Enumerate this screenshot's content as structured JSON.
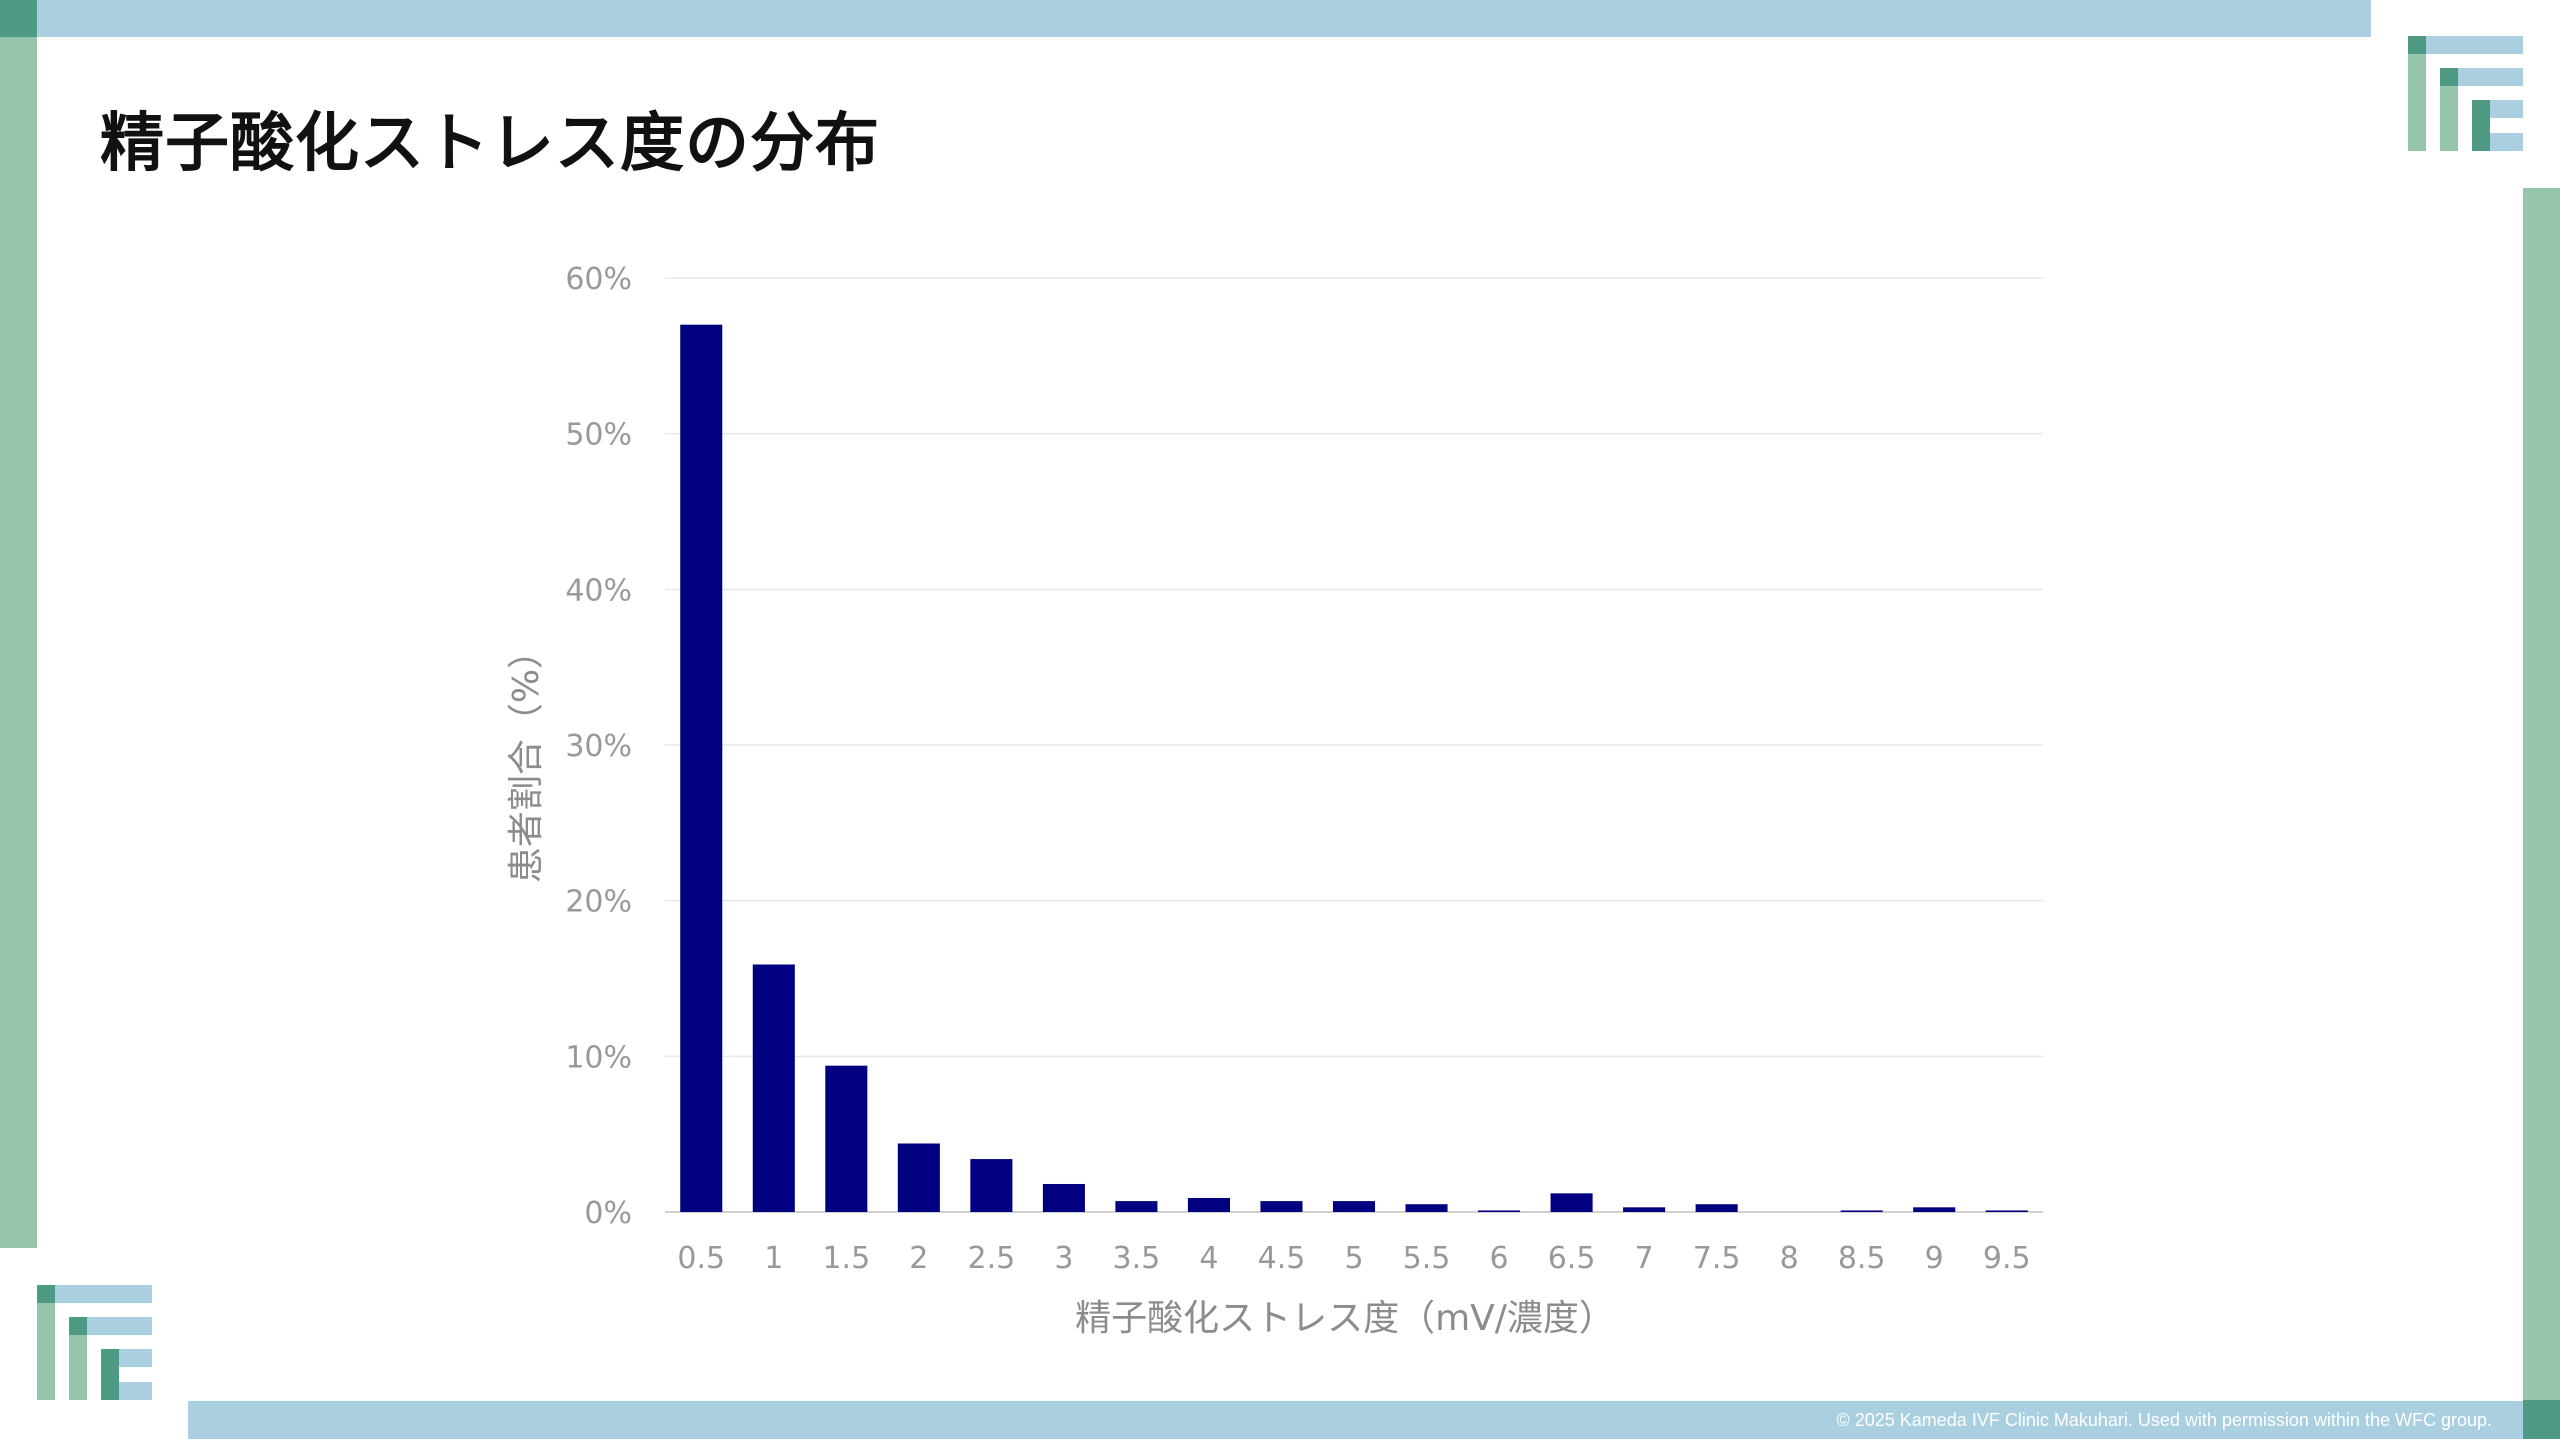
{
  "title": "精子酸化ストレス度の分布",
  "copyright": "© 2025 Kameda IVF Clinic Makuhari. Used with permission within the WFC group.",
  "colors": {
    "top_bar": "#a9cfe0",
    "side_bar": "#97c5ac",
    "accent_dark": "#4f9a84",
    "bar_fill": "#000080"
  },
  "logo_icon": "stepped-bars-logo",
  "chart_data": {
    "type": "bar",
    "xlabel": "精子酸化ストレス度（mV/濃度）",
    "ylabel": "患者割合（%）",
    "ylim": [
      0,
      60
    ],
    "yticks": [
      "0%",
      "10%",
      "20%",
      "30%",
      "40%",
      "50%",
      "60%"
    ],
    "grid": true,
    "legend": "none",
    "categories": [
      "0.5",
      "1",
      "1.5",
      "2",
      "2.5",
      "3",
      "3.5",
      "4",
      "4.5",
      "5",
      "5.5",
      "6",
      "6.5",
      "7",
      "7.5",
      "8",
      "8.5",
      "9",
      "9.5"
    ],
    "values": [
      57.0,
      15.9,
      9.4,
      4.4,
      3.4,
      1.8,
      0.7,
      0.9,
      0.7,
      0.7,
      0.5,
      0.1,
      1.2,
      0.3,
      0.5,
      0,
      0.1,
      0.3,
      0.1
    ]
  }
}
